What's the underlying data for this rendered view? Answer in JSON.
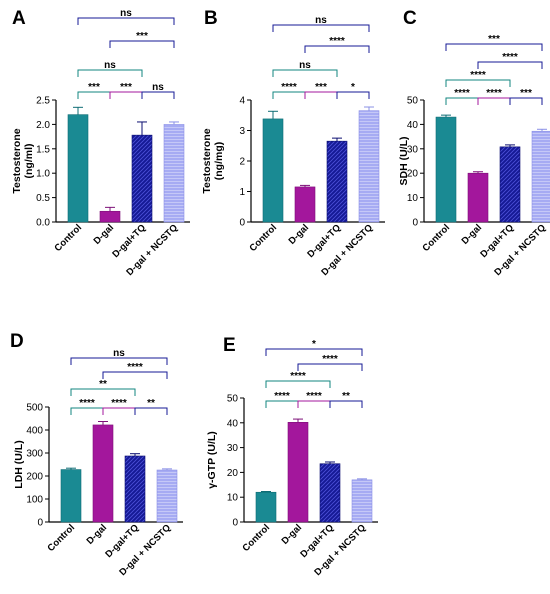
{
  "colors": {
    "control": "#1a8a93",
    "dgal": "#a3179c",
    "dgal_tq": "#151995",
    "dgal_ncstq": "#a6abf3",
    "bracket_top": "#151995",
    "bracket_ab": "#11867f",
    "bracket_cd": "#a3179c",
    "bracket_other": "#151995",
    "axis": "#000000"
  },
  "chart_data": [
    {
      "type": "bar",
      "panel_label": "A",
      "categories": [
        "Control",
        "D-gal",
        "D-gal+TQ",
        "D-gal + NCSTQ"
      ],
      "values": [
        2.2,
        0.22,
        1.78,
        2.0
      ],
      "errors": [
        0.15,
        0.08,
        0.27,
        0.05
      ],
      "ylabel": "Testosterone (ng/ml)",
      "ylim": [
        0,
        2.5
      ],
      "yticks": [
        "0.0",
        "0.5",
        "1.0",
        "1.5",
        "2.0",
        "2.5"
      ],
      "yticks_values": [
        0,
        0.5,
        1.0,
        1.5,
        2.0,
        2.5
      ],
      "brackets": [
        {
          "from": 0,
          "to": 3,
          "label": "ns"
        },
        {
          "from": 1,
          "to": 3,
          "label": "***"
        },
        {
          "from": 0,
          "to": 2,
          "label": "ns"
        },
        {
          "from": 0,
          "to": 1,
          "label": "***"
        },
        {
          "from": 1,
          "to": 2,
          "label": "***"
        },
        {
          "from": 2,
          "to": 3,
          "label": "ns"
        }
      ]
    },
    {
      "type": "bar",
      "panel_label": "B",
      "categories": [
        "Control",
        "D-gal",
        "D-gal+TQ",
        "D-gal + NCSTQ"
      ],
      "values": [
        3.38,
        1.15,
        2.65,
        3.65
      ],
      "errors": [
        0.25,
        0.05,
        0.1,
        0.12
      ],
      "ylabel": "Testosterone (ng/mg)",
      "ylim": [
        0,
        4
      ],
      "yticks": [
        "0",
        "1",
        "2",
        "3",
        "4"
      ],
      "yticks_values": [
        0,
        1,
        2,
        3,
        4
      ],
      "brackets": [
        {
          "from": 0,
          "to": 3,
          "label": "ns"
        },
        {
          "from": 1,
          "to": 3,
          "label": "****"
        },
        {
          "from": 0,
          "to": 2,
          "label": "ns"
        },
        {
          "from": 0,
          "to": 1,
          "label": "****"
        },
        {
          "from": 1,
          "to": 2,
          "label": "***"
        },
        {
          "from": 2,
          "to": 3,
          "label": "*"
        }
      ]
    },
    {
      "type": "bar",
      "panel_label": "C",
      "categories": [
        "Control",
        "D-gal",
        "D-gal+TQ",
        "D-gal + NCSTQ"
      ],
      "values": [
        43,
        20,
        30.8,
        37.2
      ],
      "errors": [
        0.8,
        0.6,
        0.8,
        0.8
      ],
      "ylabel": "SDH  (U/L)",
      "ylim": [
        0,
        50
      ],
      "yticks": [
        "0",
        "10",
        "20",
        "30",
        "40",
        "50"
      ],
      "yticks_values": [
        0,
        10,
        20,
        30,
        40,
        50
      ],
      "brackets": [
        {
          "from": 0,
          "to": 3,
          "label": "***"
        },
        {
          "from": 1,
          "to": 3,
          "label": "****"
        },
        {
          "from": 0,
          "to": 2,
          "label": "****"
        },
        {
          "from": 0,
          "to": 1,
          "label": "****"
        },
        {
          "from": 1,
          "to": 2,
          "label": "****"
        },
        {
          "from": 2,
          "to": 3,
          "label": "***"
        }
      ]
    },
    {
      "type": "bar",
      "panel_label": "D",
      "categories": [
        "Control",
        "D-gal",
        "D-gal+TQ",
        "D-gal + NCSTQ"
      ],
      "values": [
        228,
        422,
        287,
        226
      ],
      "errors": [
        6,
        15,
        10,
        5
      ],
      "ylabel": "LDH (U/L)",
      "ylim": [
        0,
        500
      ],
      "yticks": [
        "0",
        "100",
        "200",
        "300",
        "400",
        "500"
      ],
      "yticks_values": [
        0,
        100,
        200,
        300,
        400,
        500
      ],
      "brackets": [
        {
          "from": 0,
          "to": 3,
          "label": "ns"
        },
        {
          "from": 1,
          "to": 3,
          "label": "****"
        },
        {
          "from": 0,
          "to": 2,
          "label": "**"
        },
        {
          "from": 0,
          "to": 1,
          "label": "****"
        },
        {
          "from": 1,
          "to": 2,
          "label": "****"
        },
        {
          "from": 2,
          "to": 3,
          "label": "**"
        }
      ]
    },
    {
      "type": "bar",
      "panel_label": "E",
      "categories": [
        "Control",
        "D-gal",
        "D-gal+TQ",
        "D-gal + NCSTQ"
      ],
      "values": [
        12,
        40.2,
        23.5,
        17
      ],
      "errors": [
        0.3,
        1.3,
        0.7,
        0.4
      ],
      "ylabel": "γ-GTP (U/L)",
      "ylim": [
        0,
        50
      ],
      "yticks": [
        "0",
        "10",
        "20",
        "30",
        "40",
        "50"
      ],
      "yticks_values": [
        0,
        10,
        20,
        30,
        40,
        50
      ],
      "brackets": [
        {
          "from": 0,
          "to": 3,
          "label": "*"
        },
        {
          "from": 1,
          "to": 3,
          "label": "****"
        },
        {
          "from": 0,
          "to": 2,
          "label": "****"
        },
        {
          "from": 0,
          "to": 1,
          "label": "****"
        },
        {
          "from": 1,
          "to": 2,
          "label": "****"
        },
        {
          "from": 2,
          "to": 3,
          "label": "**"
        }
      ]
    }
  ]
}
